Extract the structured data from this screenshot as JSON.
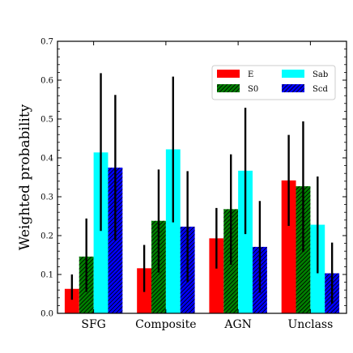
{
  "chart_data": {
    "type": "bar",
    "categories": [
      "SFG",
      "Composite",
      "AGN",
      "Unclass"
    ],
    "ylabel": "Weighted probability",
    "xlabel": "",
    "ylim": [
      0,
      0.7
    ],
    "yticks": [
      "0.0",
      "0.1",
      "0.2",
      "0.3",
      "0.4",
      "0.5",
      "0.6",
      "0.7"
    ],
    "legend_placement": "upper-right",
    "series": [
      {
        "name": "E",
        "color": "#ff0000",
        "hatch": false,
        "values": [
          0.063,
          0.116,
          0.193,
          0.342
        ],
        "err_low": [
          0.035,
          0.055,
          0.115,
          0.225
        ],
        "err_high": [
          0.1,
          0.176,
          0.271,
          0.459
        ]
      },
      {
        "name": "S0",
        "color": "#008000",
        "hatch": true,
        "values": [
          0.146,
          0.238,
          0.268,
          0.327
        ],
        "err_low": [
          0.055,
          0.105,
          0.125,
          0.158
        ],
        "err_high": [
          0.244,
          0.37,
          0.409,
          0.494
        ]
      },
      {
        "name": "Sab",
        "color": "#00ffff",
        "hatch": false,
        "values": [
          0.414,
          0.422,
          0.367,
          0.228
        ],
        "err_low": [
          0.212,
          0.234,
          0.204,
          0.103
        ],
        "err_high": [
          0.618,
          0.609,
          0.529,
          0.352
        ]
      },
      {
        "name": "Scd",
        "color": "#0000ff",
        "hatch": true,
        "values": [
          0.375,
          0.223,
          0.171,
          0.103
        ],
        "err_low": [
          0.188,
          0.08,
          0.053,
          0.025
        ],
        "err_high": [
          0.562,
          0.366,
          0.289,
          0.182
        ]
      }
    ]
  }
}
